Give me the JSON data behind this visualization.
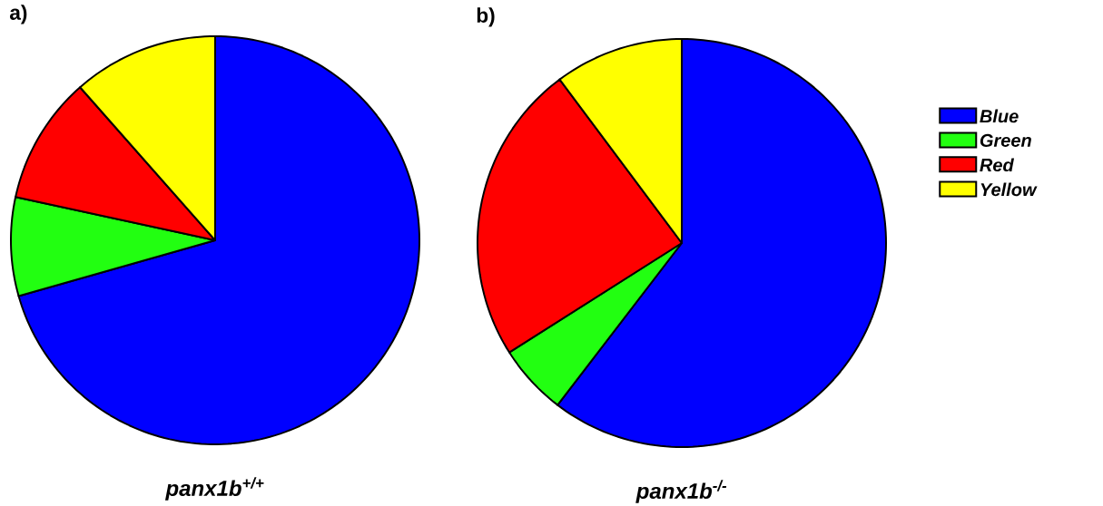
{
  "chart_data": [
    {
      "type": "pie",
      "title": "a)",
      "xlabel": "panx1b$^{+/+}$",
      "categories": [
        null,
        null,
        null,
        null
      ],
      "values": [
        70.6,
        7.8,
        10.1,
        11.5
      ],
      "colors": [
        "#0000ff",
        "#22ff11",
        "#ff0000",
        "#ffff00"
      ]
    },
    {
      "type": "pie",
      "title": "b)",
      "xlabel": "panx1b$^{-/-}$",
      "categories": [
        "Blue",
        "Green",
        "Red",
        "Yellow"
      ],
      "values": [
        60.4,
        5.6,
        23.8,
        10.2
      ],
      "colors": [
        "#0000ff",
        "#22ff11",
        "#ff0000",
        "#ffff00"
      ],
      "legend": "right"
    }
  ]
}
